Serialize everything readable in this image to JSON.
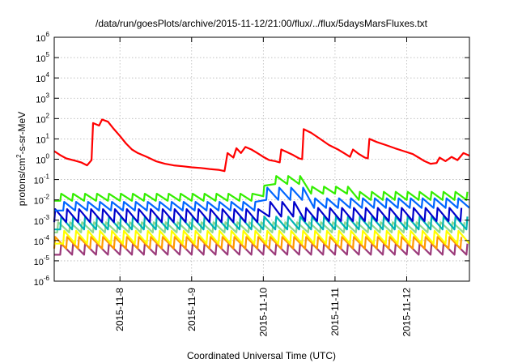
{
  "chart_data": {
    "type": "line",
    "title": "/data/run/goesPlots/archive/2015-11-12/21:00/flux/../flux/5daysMarsFluxes.txt",
    "xlabel": "Coordinated Universal Time (UTC)",
    "ylabel": {
      "main": "protons/cm",
      "sup": "2",
      "rest": "-s-sr-MeV"
    },
    "y_scale": "log",
    "ylim": [
      1e-06,
      1000000.0
    ],
    "y_ticks": [
      {
        "exp": -6,
        "value": 1e-06
      },
      {
        "exp": -5,
        "value": 1e-05
      },
      {
        "exp": -4,
        "value": 0.0001
      },
      {
        "exp": -3,
        "value": 0.001
      },
      {
        "exp": -2,
        "value": 0.01
      },
      {
        "exp": -1,
        "value": 0.1
      },
      {
        "exp": 0,
        "value": 1
      },
      {
        "exp": 1,
        "value": 10
      },
      {
        "exp": 2,
        "value": 100
      },
      {
        "exp": 3,
        "value": 1000
      },
      {
        "exp": 4,
        "value": 10000
      },
      {
        "exp": 5,
        "value": 100000
      },
      {
        "exp": 6,
        "value": 1000000
      }
    ],
    "xlim": [
      "2015-11-07 02:00",
      "2015-11-12 21:00"
    ],
    "x_ticks": [
      "2015-11-8",
      "2015-11-9",
      "2015-11-10",
      "2015-11-11",
      "2015-11-12"
    ],
    "x_tick_dates": [
      "2015-11-08 00:00",
      "2015-11-09 00:00",
      "2015-11-10 00:00",
      "2015-11-11 00:00",
      "2015-11-12 00:00"
    ],
    "grid": true,
    "series": [
      {
        "color": "#ff0000",
        "points": [
          [
            "2015-11-07 02:00",
            2.5
          ],
          [
            "2015-11-07 04:00",
            1.6
          ],
          [
            "2015-11-07 06:00",
            1.1
          ],
          [
            "2015-11-07 09:00",
            0.85
          ],
          [
            "2015-11-07 11:00",
            0.7
          ],
          [
            "2015-11-07 13:00",
            0.5
          ],
          [
            "2015-11-07 14:30",
            0.9
          ],
          [
            "2015-11-07 15:00",
            60
          ],
          [
            "2015-11-07 17:00",
            45
          ],
          [
            "2015-11-07 18:00",
            90
          ],
          [
            "2015-11-07 20:00",
            70
          ],
          [
            "2015-11-07 22:00",
            30
          ],
          [
            "2015-11-08 00:00",
            14
          ],
          [
            "2015-11-08 02:00",
            6
          ],
          [
            "2015-11-08 04:00",
            3
          ],
          [
            "2015-11-08 06:00",
            2
          ],
          [
            "2015-11-08 09:00",
            1.3
          ],
          [
            "2015-11-08 12:00",
            0.8
          ],
          [
            "2015-11-08 15:00",
            0.6
          ],
          [
            "2015-11-08 18:00",
            0.5
          ],
          [
            "2015-11-08 21:00",
            0.45
          ],
          [
            "2015-11-09 00:00",
            0.4
          ],
          [
            "2015-11-09 03:00",
            0.37
          ],
          [
            "2015-11-09 06:00",
            0.33
          ],
          [
            "2015-11-09 09:00",
            0.3
          ],
          [
            "2015-11-09 11:00",
            0.26
          ],
          [
            "2015-11-09 12:00",
            2
          ],
          [
            "2015-11-09 14:00",
            1.2
          ],
          [
            "2015-11-09 15:00",
            3.5
          ],
          [
            "2015-11-09 16:30",
            2
          ],
          [
            "2015-11-09 18:00",
            4
          ],
          [
            "2015-11-09 20:00",
            3
          ],
          [
            "2015-11-09 22:00",
            2
          ],
          [
            "2015-11-10 00:00",
            1.3
          ],
          [
            "2015-11-10 02:00",
            0.9
          ],
          [
            "2015-11-10 04:00",
            0.8
          ],
          [
            "2015-11-10 05:30",
            0.7
          ],
          [
            "2015-11-10 06:00",
            3
          ],
          [
            "2015-11-10 08:00",
            2.2
          ],
          [
            "2015-11-10 10:00",
            1.6
          ],
          [
            "2015-11-10 12:00",
            1.1
          ],
          [
            "2015-11-10 13:00",
            1
          ],
          [
            "2015-11-10 13:30",
            30
          ],
          [
            "2015-11-10 16:00",
            20
          ],
          [
            "2015-11-10 19:00",
            10
          ],
          [
            "2015-11-10 22:00",
            5
          ],
          [
            "2015-11-11 01:00",
            3
          ],
          [
            "2015-11-11 03:00",
            2
          ],
          [
            "2015-11-11 05:00",
            1.3
          ],
          [
            "2015-11-11 06:00",
            3
          ],
          [
            "2015-11-11 08:00",
            1.8
          ],
          [
            "2015-11-11 10:00",
            1.2
          ],
          [
            "2015-11-11 11:00",
            1.1
          ],
          [
            "2015-11-11 11:30",
            10
          ],
          [
            "2015-11-11 14:00",
            7
          ],
          [
            "2015-11-11 17:00",
            5
          ],
          [
            "2015-11-11 20:00",
            3.5
          ],
          [
            "2015-11-11 23:00",
            2.5
          ],
          [
            "2015-11-12 02:00",
            1.8
          ],
          [
            "2015-11-12 04:00",
            1.2
          ],
          [
            "2015-11-12 06:00",
            0.8
          ],
          [
            "2015-11-12 08:00",
            0.6
          ],
          [
            "2015-11-12 10:00",
            0.65
          ],
          [
            "2015-11-12 11:00",
            1.2
          ],
          [
            "2015-11-12 13:00",
            0.8
          ],
          [
            "2015-11-12 15:00",
            1.3
          ],
          [
            "2015-11-12 17:00",
            0.9
          ],
          [
            "2015-11-12 19:00",
            2
          ],
          [
            "2015-11-12 21:00",
            1.5
          ]
        ]
      },
      {
        "color": "#33ee00",
        "pattern": {
          "period_hours": 4,
          "phase_hours": 0,
          "segments": [
            {
              "from": "2015-11-07 02:00",
              "to": "2015-11-10 00:00",
              "low": 0.009,
              "high": 0.02
            },
            {
              "from": "2015-11-10 00:00",
              "to": "2015-11-10 02:00",
              "low": 0.015,
              "high": 0.05
            },
            {
              "from": "2015-11-10 02:00",
              "to": "2015-11-10 14:00",
              "low": 0.06,
              "high": 0.15
            },
            {
              "from": "2015-11-10 14:00",
              "to": "2015-11-11 06:00",
              "low": 0.02,
              "high": 0.045
            },
            {
              "from": "2015-11-11 06:00",
              "to": "2015-11-12 21:00",
              "low": 0.01,
              "high": 0.025
            }
          ]
        }
      },
      {
        "color": "#0066ff",
        "pattern": {
          "period_hours": 4,
          "phase_hours": 1,
          "segments": [
            {
              "from": "2015-11-07 02:00",
              "to": "2015-11-10 00:00",
              "low": 0.003,
              "high": 0.008
            },
            {
              "from": "2015-11-10 00:00",
              "to": "2015-11-10 14:00",
              "low": 0.01,
              "high": 0.04
            },
            {
              "from": "2015-11-10 14:00",
              "to": "2015-11-12 21:00",
              "low": 0.004,
              "high": 0.012
            }
          ]
        }
      },
      {
        "color": "#0000cc",
        "pattern": {
          "period_hours": 4,
          "phase_hours": 2,
          "segments": [
            {
              "from": "2015-11-07 02:00",
              "to": "2015-11-10 00:00",
              "low": 0.0008,
              "high": 0.0035
            },
            {
              "from": "2015-11-10 00:00",
              "to": "2015-11-10 14:00",
              "low": 0.0015,
              "high": 0.008
            },
            {
              "from": "2015-11-10 14:00",
              "to": "2015-11-12 21:00",
              "low": 0.0009,
              "high": 0.004
            }
          ]
        }
      },
      {
        "color": "#00b3b3",
        "pattern": {
          "period_hours": 4,
          "phase_hours": 0,
          "segments": [
            {
              "from": "2015-11-07 02:00",
              "to": "2015-11-12 21:00",
              "low": 0.00035,
              "high": 0.0015
            }
          ]
        }
      },
      {
        "color": "#8fd88f",
        "pattern": {
          "period_hours": 4,
          "phase_hours": 3,
          "segments": [
            {
              "from": "2015-11-07 02:00",
              "to": "2015-11-12 21:00",
              "low": 0.00025,
              "high": 0.0008
            }
          ]
        }
      },
      {
        "color": "#ffff00",
        "pattern": {
          "period_hours": 4,
          "phase_hours": 1,
          "segments": [
            {
              "from": "2015-11-07 02:00",
              "to": "2015-11-12 21:00",
              "low": 7e-05,
              "high": 0.0003
            }
          ]
        }
      },
      {
        "color": "#ff9900",
        "pattern": {
          "period_hours": 4,
          "phase_hours": 2,
          "segments": [
            {
              "from": "2015-11-07 02:00",
              "to": "2015-11-12 21:00",
              "low": 4e-05,
              "high": 0.00015
            }
          ]
        }
      },
      {
        "color": "#9b3a7a",
        "pattern": {
          "period_hours": 4,
          "phase_hours": 0,
          "segments": [
            {
              "from": "2015-11-07 02:00",
              "to": "2015-11-12 21:00",
              "low": 2e-05,
              "high": 7e-05
            }
          ]
        }
      }
    ]
  }
}
